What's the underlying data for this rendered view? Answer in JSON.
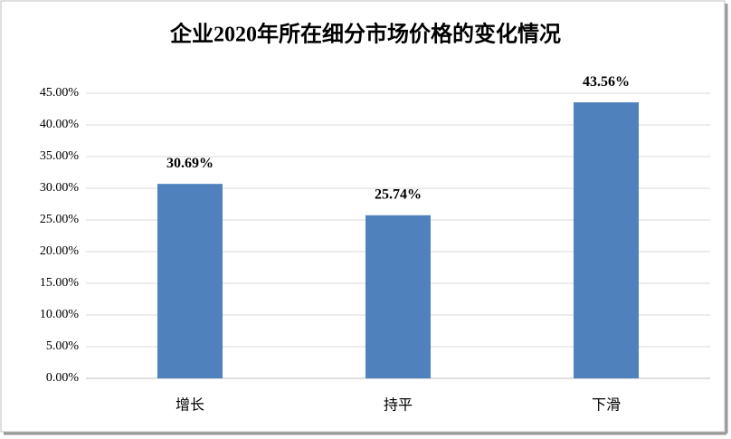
{
  "chart_data": {
    "type": "bar",
    "title": "企业2020年所在细分市场价格的变化情况",
    "categories": [
      "增长",
      "持平",
      "下滑"
    ],
    "values": [
      30.69,
      25.74,
      43.56
    ],
    "value_labels": [
      "30.69%",
      "25.74%",
      "43.56%"
    ],
    "color": "#4f81bd",
    "ylim": [
      0,
      45
    ],
    "yticks": [
      {
        "value": 0,
        "label": "0.00%"
      },
      {
        "value": 5,
        "label": "5.00%"
      },
      {
        "value": 10,
        "label": "10.00%"
      },
      {
        "value": 15,
        "label": "15.00%"
      },
      {
        "value": 20,
        "label": "20.00%"
      },
      {
        "value": 25,
        "label": "25.00%"
      },
      {
        "value": 30,
        "label": "30.00%"
      },
      {
        "value": 35,
        "label": "35.00%"
      },
      {
        "value": 40,
        "label": "40.00%"
      },
      {
        "value": 45,
        "label": "45.00%"
      }
    ],
    "grid": true
  }
}
